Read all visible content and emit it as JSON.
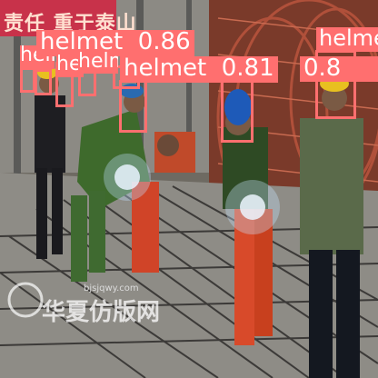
{
  "photo": {
    "banner_text": "责任  重于泰山",
    "watermark_site": "bjsjqwy.com",
    "watermark_brand": "华夏仿版网"
  },
  "detection": {
    "class_label": "helmet",
    "box_color": "#ff6f6f",
    "text_color": "#ffffff",
    "boxes": [
      {
        "score": "0.86"
      },
      {
        "score": "0.81"
      },
      {
        "score": "0.8"
      },
      {
        "score": ""
      },
      {
        "score": ""
      },
      {
        "score": ""
      },
      {
        "score": ""
      },
      {
        "score": ""
      },
      {
        "score": ""
      }
    ]
  }
}
